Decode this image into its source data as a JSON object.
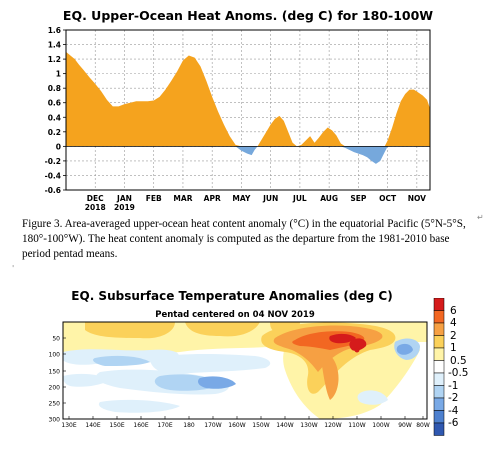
{
  "chart_data": [
    {
      "type": "area",
      "title": "EQ. Upper-Ocean Heat Anoms. (deg C) for 180-100W",
      "ylim": [
        -0.6,
        1.6
      ],
      "yticks": [
        "1.6",
        "1.4",
        "1.2",
        "1",
        "0.8",
        "0.6",
        "0.4",
        "0.2",
        "0",
        "-0.2",
        "-0.4",
        "-0.6"
      ],
      "ytick_values": [
        1.6,
        1.4,
        1.2,
        1.0,
        0.8,
        0.6,
        0.4,
        0.2,
        0,
        -0.2,
        -0.4,
        -0.6
      ],
      "xticks": [
        {
          "label": "DEC",
          "sub": "2018",
          "t": 1
        },
        {
          "label": "JAN",
          "sub": "2019",
          "t": 2
        },
        {
          "label": "FEB",
          "sub": "",
          "t": 3
        },
        {
          "label": "MAR",
          "sub": "",
          "t": 4
        },
        {
          "label": "APR",
          "sub": "",
          "t": 5
        },
        {
          "label": "MAY",
          "sub": "",
          "t": 6
        },
        {
          "label": "JUN",
          "sub": "",
          "t": 7
        },
        {
          "label": "JUL",
          "sub": "",
          "t": 8
        },
        {
          "label": "AUG",
          "sub": "",
          "t": 9
        },
        {
          "label": "SEP",
          "sub": "",
          "t": 10
        },
        {
          "label": "OCT",
          "sub": "",
          "t": 11
        },
        {
          "label": "NOV",
          "sub": "",
          "t": 12
        }
      ],
      "x": [
        0.0,
        0.15,
        0.3,
        0.45,
        0.6,
        0.8,
        1.0,
        1.2,
        1.4,
        1.6,
        1.8,
        2.0,
        2.2,
        2.4,
        2.6,
        2.8,
        3.0,
        3.2,
        3.4,
        3.6,
        3.8,
        4.0,
        4.2,
        4.4,
        4.6,
        4.8,
        5.0,
        5.2,
        5.4,
        5.6,
        5.8,
        6.0,
        6.2,
        6.35,
        6.45,
        6.55,
        6.7,
        6.85,
        7.0,
        7.15,
        7.3,
        7.45,
        7.6,
        7.75,
        7.9,
        8.05,
        8.2,
        8.35,
        8.5,
        8.65,
        8.8,
        8.95,
        9.1,
        9.25,
        9.4,
        9.55,
        9.7,
        9.85,
        10.0,
        10.15,
        10.3,
        10.45,
        10.6,
        10.75,
        10.9,
        11.0,
        11.15,
        11.3,
        11.45,
        11.6,
        11.75,
        11.9,
        12.05,
        12.2,
        12.35,
        12.45
      ],
      "series": [
        {
          "values": [
            1.3,
            1.25,
            1.2,
            1.12,
            1.05,
            0.95,
            0.86,
            0.76,
            0.64,
            0.55,
            0.55,
            0.58,
            0.6,
            0.62,
            0.62,
            0.62,
            0.63,
            0.68,
            0.78,
            0.9,
            1.03,
            1.18,
            1.25,
            1.22,
            1.1,
            0.9,
            0.68,
            0.48,
            0.3,
            0.14,
            0.02,
            -0.06,
            -0.1,
            -0.12,
            -0.05,
            0.0,
            0.1,
            0.2,
            0.3,
            0.38,
            0.42,
            0.35,
            0.2,
            0.05,
            0.0,
            0.02,
            0.08,
            0.14,
            0.05,
            0.12,
            0.2,
            0.26,
            0.22,
            0.15,
            0.04,
            -0.02,
            -0.05,
            -0.08,
            -0.1,
            -0.12,
            -0.15,
            -0.2,
            -0.24,
            -0.2,
            -0.08,
            0.08,
            0.25,
            0.45,
            0.62,
            0.72,
            0.78,
            0.78,
            0.74,
            0.7,
            0.64,
            0.52
          ]
        }
      ],
      "colors": {
        "positive": "#f5a31e",
        "negative": "#76a8dc"
      }
    },
    {
      "type": "heatmap",
      "title": "EQ. Subsurface Temperature Anomalies (deg C)",
      "subtitle": "Pentad centered on 04 NOV 2019",
      "xticks": [
        "130E",
        "140E",
        "150E",
        "160E",
        "170E",
        "180",
        "170W",
        "160W",
        "150W",
        "140W",
        "130W",
        "120W",
        "110W",
        "100W",
        "90W",
        "80W"
      ],
      "yticks": [
        "50",
        "100",
        "150",
        "200",
        "250",
        "300"
      ],
      "colorbar": {
        "labels": [
          "6",
          "4",
          "2",
          "1",
          "0.5",
          "-0.5",
          "-1",
          "-2",
          "-4",
          "-6"
        ],
        "colors": [
          "#d51b1b",
          "#f26722",
          "#f6a043",
          "#fbd15a",
          "#fff4a8",
          "#ffffff",
          "#dff0fb",
          "#b0d4f3",
          "#79a9e6",
          "#4d80cf",
          "#2f58b0"
        ]
      }
    }
  ],
  "caption": {
    "text": "Figure 3. Area-averaged upper-ocean heat content anomaly (°C) in the equatorial Pacific (5°N-5°S, 180°-100°W). The heat content anomaly is computed as the departure from the 1981-2010 base period pentad means.",
    "mark": "↵"
  },
  "marks": {
    "small": "'"
  }
}
